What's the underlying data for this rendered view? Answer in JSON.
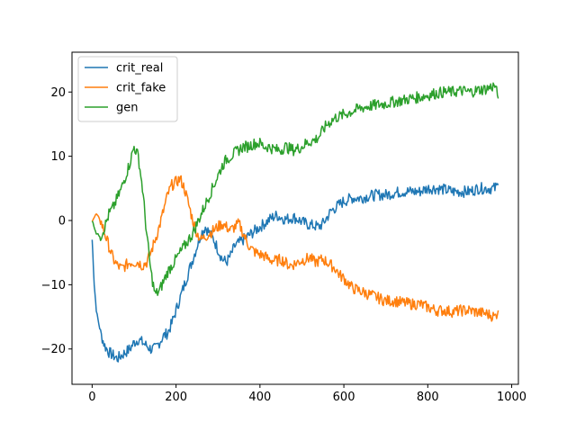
{
  "chart_data": {
    "type": "line",
    "title": "",
    "xlabel": "",
    "ylabel": "",
    "xlim": [
      -48,
      1016
    ],
    "ylim": [
      -25.5,
      26.2
    ],
    "x_ticks": [
      0,
      200,
      400,
      600,
      800,
      1000
    ],
    "y_ticks": [
      -20,
      -10,
      0,
      10,
      20
    ],
    "grid": false,
    "legend_position": "top-left",
    "series": [
      {
        "name": "crit_real",
        "color": "#1f77b4",
        "x": [
          0,
          5,
          10,
          20,
          30,
          40,
          50,
          60,
          70,
          80,
          90,
          100,
          110,
          120,
          130,
          140,
          150,
          160,
          170,
          180,
          190,
          200,
          210,
          220,
          230,
          240,
          250,
          260,
          270,
          280,
          290,
          300,
          310,
          320,
          330,
          340,
          350,
          360,
          370,
          380,
          390,
          400,
          410,
          420,
          430,
          440,
          450,
          460,
          470,
          480,
          490,
          500,
          510,
          520,
          530,
          540,
          550,
          560,
          570,
          580,
          590,
          600,
          620,
          640,
          660,
          680,
          700,
          720,
          740,
          760,
          780,
          800,
          820,
          840,
          860,
          880,
          900,
          920,
          940,
          960,
          968
        ],
        "y": [
          -3,
          -10,
          -14,
          -17.5,
          -19.5,
          -20.5,
          -21,
          -21.5,
          -21,
          -20.5,
          -20,
          -19,
          -18.5,
          -19,
          -19.5,
          -20,
          -20,
          -19,
          -18,
          -17.5,
          -16,
          -14,
          -12,
          -10,
          -8,
          -6,
          -4,
          -2,
          -1,
          -2,
          -3,
          -4.5,
          -6,
          -6.5,
          -5.5,
          -4,
          -3.5,
          -3,
          -2.5,
          -2,
          -1.5,
          -1,
          -0.5,
          0,
          0.5,
          0.8,
          0.5,
          0.2,
          0.3,
          0.5,
          0.2,
          -0.2,
          -0.5,
          -0.7,
          -0.8,
          -1,
          -0.5,
          0.5,
          1.5,
          2,
          2.5,
          3,
          3.5,
          3.5,
          3.8,
          4,
          4,
          4.3,
          4.5,
          4.5,
          4.5,
          5,
          5,
          4.8,
          4.5,
          4.5,
          4.5,
          5,
          5,
          5,
          5.5
        ]
      },
      {
        "name": "crit_fake",
        "color": "#ff7f0e",
        "x": [
          0,
          10,
          20,
          30,
          40,
          50,
          60,
          70,
          80,
          90,
          100,
          110,
          120,
          130,
          140,
          150,
          160,
          170,
          180,
          190,
          200,
          210,
          220,
          230,
          240,
          250,
          260,
          270,
          280,
          290,
          300,
          310,
          320,
          330,
          340,
          350,
          360,
          370,
          380,
          390,
          400,
          410,
          420,
          430,
          440,
          450,
          460,
          470,
          480,
          490,
          500,
          510,
          520,
          530,
          540,
          550,
          560,
          570,
          580,
          590,
          600,
          620,
          640,
          660,
          680,
          700,
          720,
          740,
          760,
          780,
          800,
          820,
          840,
          860,
          880,
          900,
          920,
          940,
          960,
          968
        ],
        "y": [
          0,
          1,
          0,
          -2,
          -4,
          -6,
          -7,
          -7.5,
          -7,
          -6.5,
          -6.5,
          -6.5,
          -7,
          -6.5,
          -5,
          -3,
          -1,
          1.5,
          4,
          5.5,
          6,
          6.5,
          5,
          2.5,
          0,
          -2,
          -3,
          -2.5,
          -2,
          -1.5,
          -1,
          -0.5,
          -1,
          -1.5,
          -1,
          -0.5,
          -2,
          -3.5,
          -4.5,
          -5,
          -5.3,
          -5.5,
          -6,
          -6.2,
          -6.3,
          -6,
          -6.5,
          -7,
          -6.8,
          -6.5,
          -6.2,
          -6,
          -5.8,
          -6.5,
          -6.3,
          -6,
          -6.5,
          -7,
          -7.5,
          -8.5,
          -9,
          -10.5,
          -11,
          -11.5,
          -12,
          -12.5,
          -12.5,
          -12.8,
          -13,
          -13,
          -13.5,
          -14,
          -14,
          -14.2,
          -14,
          -14,
          -14.3,
          -14.5,
          -15,
          -14
        ]
      },
      {
        "name": "gen",
        "color": "#2ca02c",
        "x": [
          0,
          10,
          20,
          30,
          40,
          50,
          60,
          70,
          80,
          90,
          100,
          110,
          120,
          130,
          140,
          150,
          160,
          170,
          180,
          190,
          200,
          210,
          220,
          230,
          240,
          250,
          260,
          270,
          280,
          290,
          300,
          310,
          320,
          330,
          340,
          350,
          360,
          370,
          380,
          390,
          400,
          410,
          420,
          430,
          440,
          450,
          460,
          470,
          480,
          490,
          500,
          510,
          520,
          530,
          540,
          550,
          560,
          570,
          580,
          590,
          600,
          620,
          640,
          660,
          680,
          700,
          720,
          740,
          760,
          780,
          800,
          820,
          840,
          860,
          880,
          900,
          920,
          940,
          960,
          968
        ],
        "y": [
          0,
          -2,
          -2.5,
          -1,
          1,
          2,
          3.5,
          5,
          7,
          9,
          11.5,
          10,
          5,
          -2,
          -8,
          -11.5,
          -11,
          -9.5,
          -8,
          -7,
          -6,
          -5,
          -4,
          -3,
          -2,
          -0.5,
          1,
          2.5,
          4,
          5.5,
          7,
          8.5,
          9.5,
          10,
          10.5,
          11,
          11.5,
          11.5,
          11.8,
          12,
          12,
          11.5,
          11.5,
          11.2,
          11,
          11,
          11.5,
          11.2,
          11,
          11.2,
          11.5,
          12,
          12.3,
          12.5,
          13,
          14,
          15,
          15.5,
          16,
          16.2,
          16.5,
          17,
          17.5,
          17.8,
          18,
          18.2,
          18.5,
          18.7,
          19,
          19.2,
          19.5,
          19.8,
          20,
          20,
          20.2,
          20,
          20.3,
          20.5,
          21,
          19
        ]
      }
    ]
  }
}
